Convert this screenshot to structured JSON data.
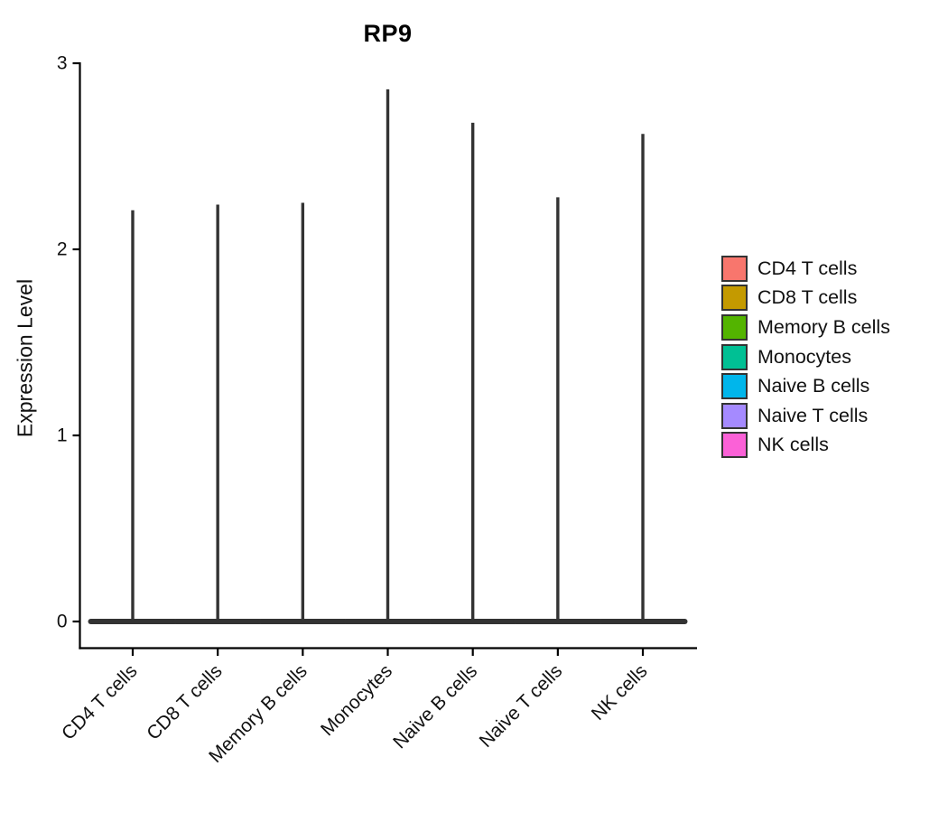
{
  "chart_data": {
    "type": "violin",
    "title": "RP9",
    "ylabel": "Expression Level",
    "xlabel": "",
    "ylim": [
      0,
      3
    ],
    "yticks": [
      0,
      1,
      2,
      3
    ],
    "grid": "off",
    "legend_position": "right",
    "categories": [
      "CD4 T cells",
      "CD8 T cells",
      "Memory B cells",
      "Monocytes",
      "Naive B cells",
      "Naive T cells",
      "NK cells"
    ],
    "series": [
      {
        "name": "CD4 T cells",
        "color": "#F8766D",
        "max_expression": 2.21,
        "bulk_value": 0
      },
      {
        "name": "CD8 T cells",
        "color": "#C49A00",
        "max_expression": 2.24,
        "bulk_value": 0
      },
      {
        "name": "Memory B cells",
        "color": "#53B400",
        "max_expression": 2.25,
        "bulk_value": 0
      },
      {
        "name": "Monocytes",
        "color": "#00C094",
        "max_expression": 2.86,
        "bulk_value": 0
      },
      {
        "name": "Naive B cells",
        "color": "#00B6EB",
        "max_expression": 2.68,
        "bulk_value": 0
      },
      {
        "name": "Naive T cells",
        "color": "#A58AFF",
        "max_expression": 2.28,
        "bulk_value": 0
      },
      {
        "name": "NK cells",
        "color": "#FB61D7",
        "max_expression": 2.62,
        "bulk_value": 0
      }
    ],
    "shape_note": "Each violin is a flat dark bar at expression 0 with a single thin vertical tail rising to the max expression value",
    "violin_outline_color": "#333333",
    "axis_color": "#000000",
    "text_color": "#111111"
  }
}
